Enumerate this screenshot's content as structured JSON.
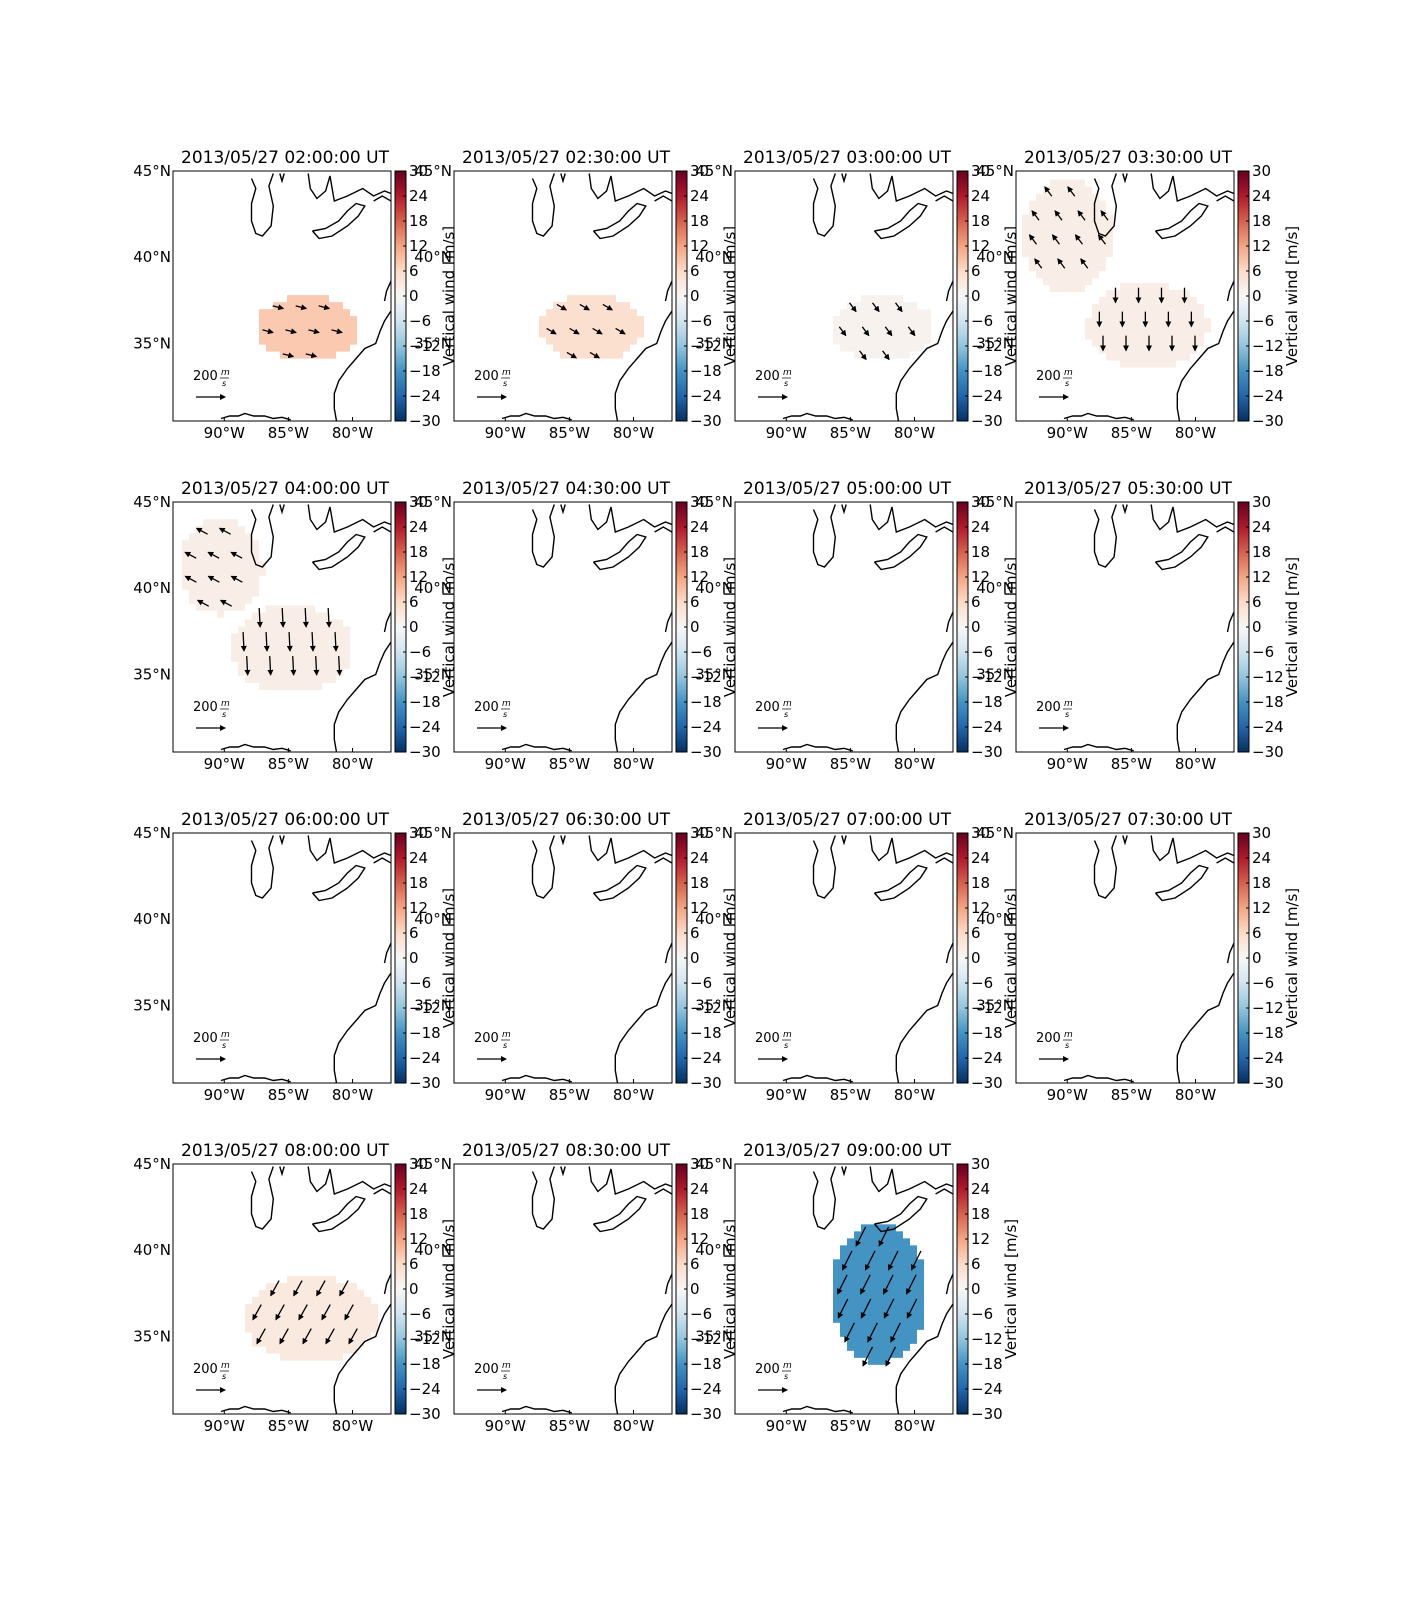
{
  "chart_data": {
    "type": "map",
    "colorbar": {
      "label": "Vertical wind [m/s]",
      "range": [
        -30,
        30
      ],
      "ticks": [
        30,
        24,
        18,
        12,
        6,
        0,
        -6,
        -12,
        -18,
        -24,
        -30
      ],
      "tick_labels": [
        "30",
        "24",
        "18",
        "12",
        "6",
        "0",
        "−6",
        "−12",
        "−18",
        "−24",
        "−30"
      ],
      "colormap": "RdBu_r"
    },
    "map_extent": {
      "lon": [
        -94,
        -77
      ],
      "lat": [
        30.5,
        45
      ]
    },
    "lon_ticks": [
      -90,
      -85,
      -80
    ],
    "lon_tick_labels": [
      "90°W",
      "85°W",
      "80°W"
    ],
    "lat_ticks": [
      35,
      40,
      45
    ],
    "lat_tick_labels": [
      "35°N",
      "40°N",
      "45°N"
    ],
    "reference_vector": {
      "label": "200",
      "unit_num": "m",
      "unit_den": "s",
      "magnitude": 200
    },
    "panels": [
      {
        "title": "2013/05/27 02:00:00 UT",
        "vertical_wind": 8,
        "regions": [
          {
            "lon": [
              -87.5,
              -79.5
            ],
            "lat": [
              34.0,
              37.8
            ],
            "vec": [
              1.0,
              -0.25
            ],
            "mag": 0.3
          }
        ]
      },
      {
        "title": "2013/05/27 02:30:00 UT",
        "vertical_wind": 5,
        "regions": [
          {
            "lon": [
              -87.3,
              -79.3
            ],
            "lat": [
              34.0,
              37.8
            ],
            "vec": [
              0.85,
              -0.5
            ],
            "mag": 0.3
          }
        ]
      },
      {
        "title": "2013/05/27 03:00:00 UT",
        "vertical_wind": 1,
        "regions": [
          {
            "lon": [
              -86.5,
              -78.5
            ],
            "lat": [
              34.0,
              37.8
            ],
            "vec": [
              0.6,
              -0.8
            ],
            "mag": 0.3
          }
        ]
      },
      {
        "title": "2013/05/27 03:30:00 UT",
        "vertical_wind": 2,
        "regions": [
          {
            "lon": [
              -93.5,
              -86.5
            ],
            "lat": [
              38.0,
              44.5
            ],
            "vec": [
              -0.6,
              0.8
            ],
            "mag": 0.35
          },
          {
            "lon": [
              -88.5,
              -79.0
            ],
            "lat": [
              33.5,
              38.5
            ],
            "vec": [
              0,
              -1
            ],
            "mag": 0.55
          }
        ]
      },
      {
        "title": "2013/05/27 04:00:00 UT",
        "vertical_wind": 2,
        "regions": [
          {
            "lon": [
              -93.5,
              -87.0
            ],
            "lat": [
              38.5,
              44.0
            ],
            "vec": [
              -0.85,
              0.45
            ],
            "mag": 0.4
          },
          {
            "lon": [
              -89.5,
              -80.0
            ],
            "lat": [
              34.0,
              39.0
            ],
            "vec": [
              0.05,
              -1
            ],
            "mag": 0.8
          }
        ]
      },
      {
        "title": "2013/05/27 04:30:00 UT",
        "vertical_wind": null,
        "regions": []
      },
      {
        "title": "2013/05/27 05:00:00 UT",
        "vertical_wind": null,
        "regions": []
      },
      {
        "title": "2013/05/27 05:30:00 UT",
        "vertical_wind": null,
        "regions": []
      },
      {
        "title": "2013/05/27 06:00:00 UT",
        "vertical_wind": null,
        "regions": []
      },
      {
        "title": "2013/05/27 06:30:00 UT",
        "vertical_wind": null,
        "regions": []
      },
      {
        "title": "2013/05/27 07:00:00 UT",
        "vertical_wind": null,
        "regions": []
      },
      {
        "title": "2013/05/27 07:30:00 UT",
        "vertical_wind": null,
        "regions": []
      },
      {
        "title": "2013/05/27 08:00:00 UT",
        "vertical_wind": 3,
        "regions": [
          {
            "lon": [
              -88.5,
              -78.0
            ],
            "lat": [
              33.5,
              38.5
            ],
            "vec": [
              -0.5,
              -0.9
            ],
            "mag": 0.7
          }
        ]
      },
      {
        "title": "2013/05/27 08:30:00 UT",
        "vertical_wind": null,
        "regions": []
      },
      {
        "title": "2013/05/27 09:00:00 UT",
        "vertical_wind": -18,
        "regions": [
          {
            "lon": [
              -86.5,
              -79.0
            ],
            "lat": [
              33.5,
              41.5
            ],
            "vec": [
              -0.45,
              -0.9
            ],
            "mag": 0.95
          }
        ]
      }
    ]
  }
}
